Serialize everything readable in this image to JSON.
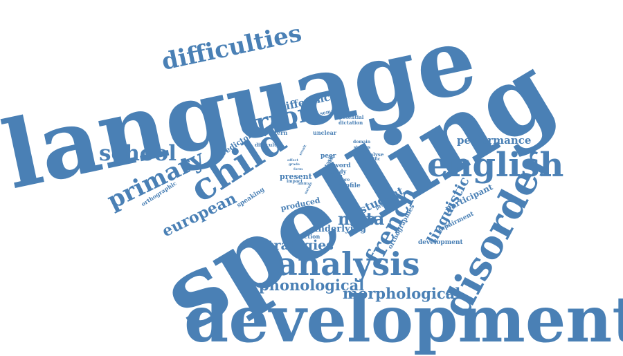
{
  "color": "#4a80b5",
  "words": [
    {
      "id": "language",
      "text": "language"
    },
    {
      "id": "spelling",
      "text": "spelling"
    },
    {
      "id": "developmental",
      "text": "developmental"
    },
    {
      "id": "analysis",
      "text": "analysis"
    },
    {
      "id": "disorder",
      "text": "disorder"
    },
    {
      "id": "english",
      "text": "english"
    },
    {
      "id": "child",
      "text": "child"
    },
    {
      "id": "error",
      "text": "error"
    },
    {
      "id": "difficulties",
      "text": "difficulties"
    },
    {
      "id": "primary",
      "text": "primary"
    },
    {
      "id": "school",
      "text": "school"
    },
    {
      "id": "french",
      "text": "french"
    },
    {
      "id": "european",
      "text": "european"
    },
    {
      "id": "phonological",
      "text": "phonological"
    },
    {
      "id": "morphological",
      "text": "morphological"
    },
    {
      "id": "strategies",
      "text": "strategies"
    },
    {
      "id": "meta",
      "text": "meta"
    },
    {
      "id": "linguistic",
      "text": "linguistic"
    },
    {
      "id": "performance",
      "text": "performance"
    },
    {
      "id": "difference",
      "text": "difference"
    },
    {
      "id": "student",
      "text": "student"
    },
    {
      "id": "participant",
      "text": "participant"
    },
    {
      "id": "underlying",
      "text": "underlying"
    },
    {
      "id": "predictor",
      "text": "predictor"
    },
    {
      "id": "speaking",
      "text": "speaking"
    },
    {
      "id": "produced",
      "text": "produced"
    },
    {
      "id": "orthographic",
      "text": "orthographic"
    },
    {
      "id": "orthographies",
      "text": "orthographies"
    },
    {
      "id": "impairment",
      "text": "impairment"
    },
    {
      "id": "development",
      "text": "development"
    },
    {
      "id": "production",
      "text": "production"
    },
    {
      "id": "present",
      "text": "present"
    },
    {
      "id": "pattern",
      "text": "pattern"
    },
    {
      "id": "difficulty",
      "text": "difficulty"
    },
    {
      "id": "semantic",
      "text": "semantic"
    },
    {
      "id": "potential",
      "text": "potential"
    },
    {
      "id": "dictation",
      "text": "dictation"
    },
    {
      "id": "unclear",
      "text": "unclear"
    },
    {
      "id": "domain",
      "text": "domain"
    },
    {
      "id": "studies",
      "text": "studies"
    },
    {
      "id": "group",
      "text": "group"
    },
    {
      "id": "analyse",
      "text": "analyse"
    },
    {
      "id": "specific",
      "text": "specific"
    },
    {
      "id": "word",
      "text": "word"
    },
    {
      "id": "study",
      "text": "study"
    },
    {
      "id": "peer",
      "text": "peer"
    },
    {
      "id": "level",
      "text": "level"
    },
    {
      "id": "more",
      "text": "more"
    },
    {
      "id": "profile",
      "text": "profile"
    },
    {
      "id": "impact",
      "text": "impact"
    },
    {
      "id": "processes",
      "text": "processes"
    },
    {
      "id": "ability",
      "text": "ability"
    },
    {
      "id": "affect",
      "text": "affect"
    },
    {
      "id": "grade",
      "text": "grade"
    },
    {
      "id": "task",
      "text": "task"
    },
    {
      "id": "skill",
      "text": "skill"
    },
    {
      "id": "result",
      "text": "result"
    },
    {
      "id": "nature",
      "text": "nature"
    },
    {
      "id": "form",
      "text": "form"
    }
  ]
}
